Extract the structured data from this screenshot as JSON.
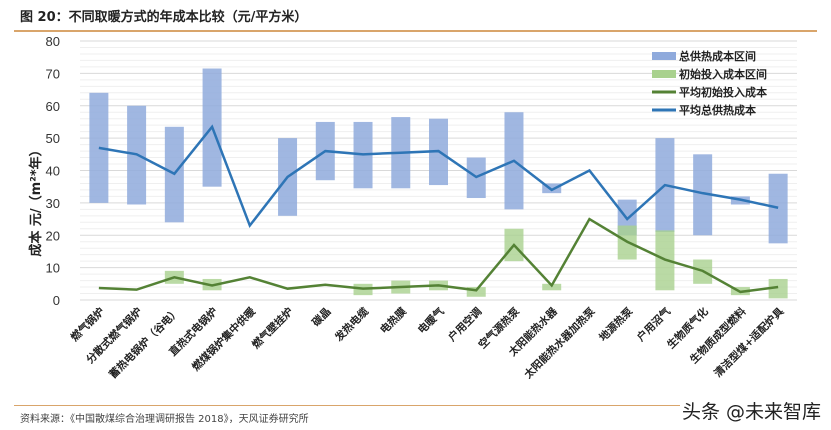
{
  "header": {
    "title": "图 20：不同取暖方式的年成本比较（元/平方米）"
  },
  "footer": {
    "source": "资料来源：《中国散煤综合治理调研报告 2018》，天风证券研究所",
    "watermark": "头条 @未来智库"
  },
  "colors": {
    "total_range": "#8faadc",
    "init_range": "#a9d18e",
    "avg_init_line": "#548235",
    "avg_total_line": "#2e75b6",
    "grid": "#e6e6e6",
    "rule": "#d9a56b"
  },
  "chart_data": {
    "type": "bar",
    "title": "不同取暖方式的年成本比较（元/平方米）",
    "xlabel": "",
    "ylabel": "成本 元/（m²*年）",
    "ylim": [
      0,
      80
    ],
    "yticks": [
      0,
      10,
      20,
      30,
      40,
      50,
      60,
      70,
      80
    ],
    "grid": true,
    "legend_position": "top-right",
    "categories": [
      "燃气锅炉",
      "分散式燃气锅炉",
      "蓄热电锅炉（谷电）",
      "直热式电锅炉",
      "燃煤锅炉集中供暖",
      "燃气壁挂炉",
      "碳晶",
      "发热电缆",
      "电热膜",
      "电暖气",
      "户用空调",
      "空气源热泵",
      "太阳能热水器",
      "太阳能热水器加热泵",
      "地源热泵",
      "户用沼气",
      "生物质气化",
      "生物质成型燃料",
      "清洁型煤+适配炉具"
    ],
    "series": [
      {
        "name": "总供热成本区间",
        "type": "floating-bar",
        "low": [
          30,
          29.5,
          24,
          35,
          null,
          26,
          37,
          34.5,
          34.5,
          35.5,
          31.5,
          28,
          33,
          null,
          20,
          21,
          20,
          29.5,
          17.5
        ],
        "high": [
          64,
          60,
          53.5,
          71.5,
          null,
          50,
          55,
          55,
          56.5,
          56,
          44,
          58,
          36,
          null,
          31,
          50,
          45,
          32,
          39
        ]
      },
      {
        "name": "初始投入成本区间",
        "type": "floating-bar",
        "low": [
          null,
          null,
          5,
          3,
          null,
          null,
          null,
          1.5,
          2,
          3,
          1,
          12,
          3,
          null,
          12.5,
          3,
          5,
          1.5,
          0.5
        ],
        "high": [
          null,
          null,
          9,
          6.5,
          null,
          null,
          null,
          5,
          6,
          6,
          4,
          22,
          5,
          null,
          23,
          21.5,
          12.5,
          4,
          6.5
        ]
      },
      {
        "name": "平均初始投入成本",
        "type": "line",
        "values": [
          3.7,
          3.2,
          7,
          4.5,
          7,
          3.5,
          4.7,
          3.5,
          4,
          4.5,
          3,
          17,
          4.5,
          25,
          18,
          12.5,
          9,
          2.5,
          4
        ]
      },
      {
        "name": "平均总供热成本",
        "type": "line",
        "values": [
          47,
          45,
          39,
          53.5,
          23,
          38,
          46,
          45,
          45.5,
          46,
          38,
          43,
          34,
          40,
          25,
          35.5,
          33,
          31,
          28.5
        ]
      }
    ]
  }
}
